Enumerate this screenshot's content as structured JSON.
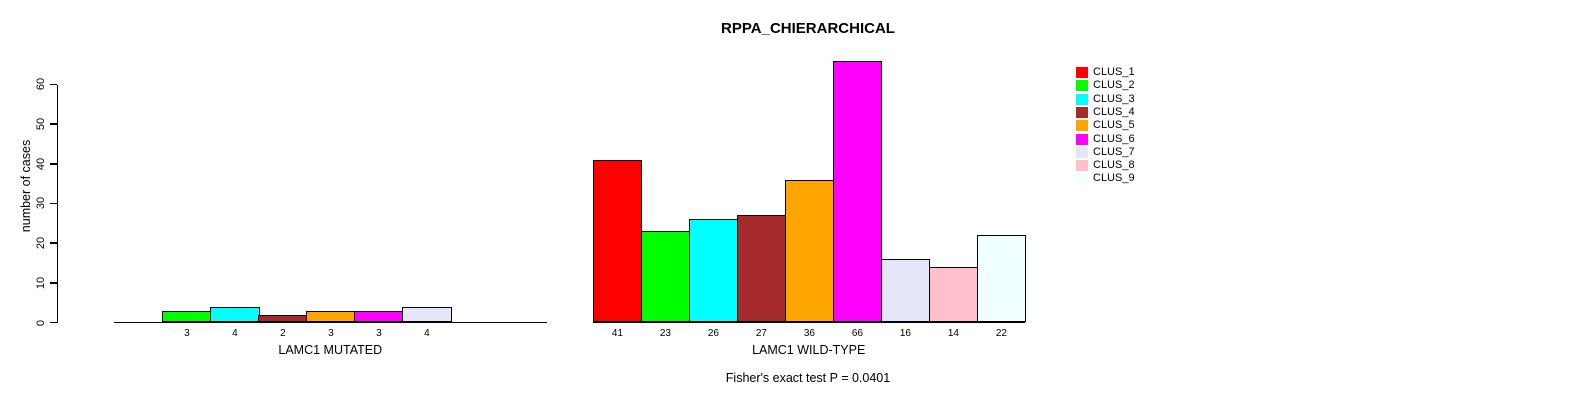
{
  "chart_data": {
    "type": "bar",
    "title": "RPPA_CHIERARCHICAL",
    "ylabel": "number of cases",
    "ylim": [
      0,
      60
    ],
    "y_ticks": [
      0,
      10,
      20,
      30,
      40,
      50,
      60
    ],
    "grid": false,
    "legend_position": "right",
    "categories": [
      "CLUS_1",
      "CLUS_2",
      "CLUS_3",
      "CLUS_4",
      "CLUS_5",
      "CLUS_6",
      "CLUS_7",
      "CLUS_8",
      "CLUS_9"
    ],
    "colors": [
      "#FF0000",
      "#00FF00",
      "#00FFFF",
      "#A52A2A",
      "#FFA500",
      "#FF00FF",
      "#E6E6FA",
      "#FFC0CB",
      "#F0FFFF"
    ],
    "groups": [
      {
        "label": "LAMC1 MUTATED",
        "values": [
          0,
          3,
          4,
          2,
          3,
          3,
          4,
          0,
          0
        ]
      },
      {
        "label": "LAMC1 WILD-TYPE",
        "values": [
          41,
          23,
          26,
          27,
          36,
          66,
          16,
          14,
          22
        ]
      }
    ],
    "annotation": "Fisher's exact test P = 0.0401"
  }
}
